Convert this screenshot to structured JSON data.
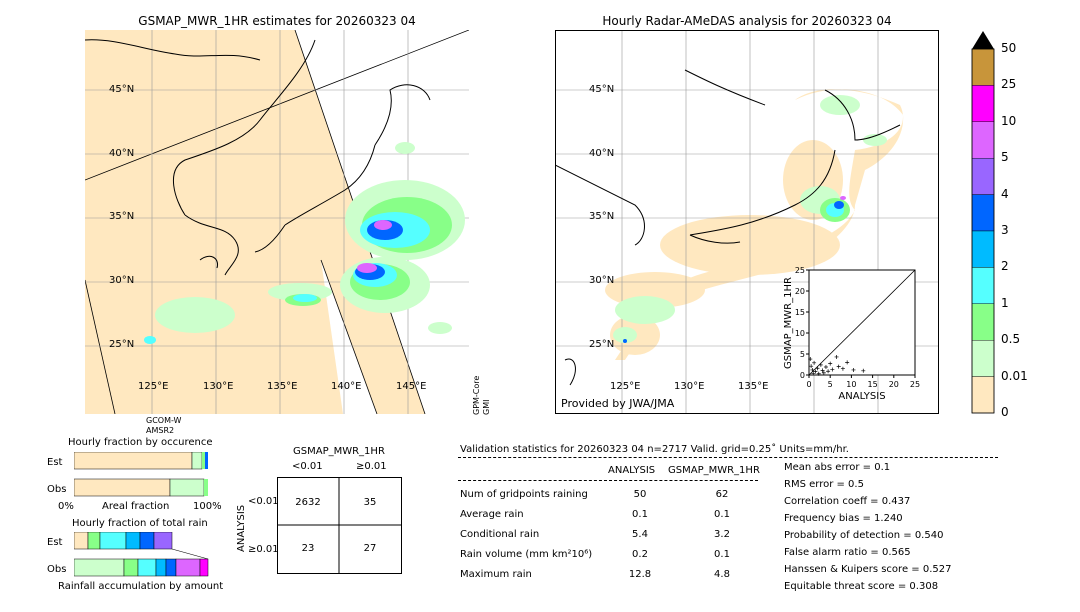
{
  "left_map": {
    "title": "GSMAP_MWR_1HR estimates for 20260323 04",
    "lat_labels": [
      "45°N",
      "40°N",
      "35°N",
      "30°N",
      "25°N"
    ],
    "lon_labels": [
      "125°E",
      "130°E",
      "135°E",
      "140°E",
      "145°E"
    ],
    "sensor_bottom": "GCOM-W\nAMSR2",
    "sensor_right": "GPM-Core\nGMI"
  },
  "right_map": {
    "title": "Hourly Radar-AMeDAS analysis for 20260323 04",
    "lat_labels": [
      "45°N",
      "40°N",
      "35°N",
      "30°N",
      "25°N"
    ],
    "lon_labels": [
      "125°E",
      "130°E",
      "135°E"
    ],
    "credit": "Provided by JWA/JMA"
  },
  "colorbar": {
    "labels": [
      "50",
      "25",
      "10",
      "5",
      "4",
      "3",
      "2",
      "1",
      "0.5",
      "0.01",
      "0"
    ],
    "colors": [
      "#c8953a",
      "#ff00ff",
      "#dd66ff",
      "#9966ff",
      "#0066ff",
      "#00bbff",
      "#55ffff",
      "#88ff88",
      "#ccffcc",
      "#ffe8c0"
    ]
  },
  "occurrence": {
    "title": "Hourly fraction by occurence",
    "row_labels": [
      "Est",
      "Obs"
    ],
    "axis_left": "0%",
    "axis_mid": "Areal fraction",
    "axis_right": "100%"
  },
  "total_rain": {
    "title": "Hourly fraction of total rain",
    "row_labels": [
      "Est",
      "Obs"
    ],
    "axis_label": "Rainfall accumulation by amount"
  },
  "contingency": {
    "title": "GSMAP_MWR_1HR",
    "col_labels": [
      "<0.01",
      "≥0.01"
    ],
    "row_axis": "ANALYSIS",
    "row_labels": [
      "<0.01",
      "≥0.01"
    ],
    "cells": [
      "2632",
      "35",
      "23",
      "27"
    ]
  },
  "validation": {
    "header": "Validation statistics for 20260323 04  n=2717 Valid. grid=0.25˚ Units=mm/hr.",
    "col_analysis": "ANALYSIS",
    "col_gsmap": "GSMAP_MWR_1HR",
    "rows": [
      {
        "label": "Num of gridpoints raining",
        "analysis": "50",
        "gsmap": "62"
      },
      {
        "label": "Average rain",
        "analysis": "0.1",
        "gsmap": "0.1"
      },
      {
        "label": "Conditional rain",
        "analysis": "5.4",
        "gsmap": "3.2"
      },
      {
        "label": "Rain volume (mm km²10⁶)",
        "analysis": "0.2",
        "gsmap": "0.1"
      },
      {
        "label": "Maximum rain",
        "analysis": "12.8",
        "gsmap": "4.8"
      }
    ],
    "scores": [
      "Mean abs error =    0.1",
      "RMS error =    0.5",
      "Correlation coeff =  0.437",
      "Frequency bias =  1.240",
      "Probability of detection =  0.540",
      "False alarm ratio =  0.565",
      "Hanssen & Kuipers score =  0.527",
      "Equitable threat score =  0.308"
    ]
  },
  "chart_data": {
    "type": "scatter",
    "xlabel": "ANALYSIS",
    "ylabel": "GSMAP_MWR_1HR",
    "xlim": [
      0,
      25
    ],
    "ylim": [
      0,
      25
    ],
    "x_ticks": [
      "0",
      "5",
      "10",
      "15",
      "20",
      "25"
    ],
    "y_ticks": [
      "0",
      "5",
      "10",
      "15",
      "20",
      "25"
    ],
    "diagonal": true,
    "points": [
      {
        "x": 0.3,
        "y": 3.8
      },
      {
        "x": 0.5,
        "y": 2.1
      },
      {
        "x": 0.8,
        "y": 1.2
      },
      {
        "x": 1.0,
        "y": 0.4
      },
      {
        "x": 1.2,
        "y": 2.9
      },
      {
        "x": 1.5,
        "y": 0.8
      },
      {
        "x": 2.0,
        "y": 1.6
      },
      {
        "x": 2.3,
        "y": 0.3
      },
      {
        "x": 2.8,
        "y": 2.4
      },
      {
        "x": 3.2,
        "y": 1.1
      },
      {
        "x": 3.5,
        "y": 0.5
      },
      {
        "x": 4.0,
        "y": 1.9
      },
      {
        "x": 4.5,
        "y": 0.9
      },
      {
        "x": 5.0,
        "y": 2.7
      },
      {
        "x": 5.5,
        "y": 1.3
      },
      {
        "x": 6.5,
        "y": 4.3
      },
      {
        "x": 7.0,
        "y": 2.0
      },
      {
        "x": 8.0,
        "y": 1.5
      },
      {
        "x": 9.0,
        "y": 3.0
      },
      {
        "x": 10.5,
        "y": 1.2
      },
      {
        "x": 12.8,
        "y": 1.0
      }
    ]
  }
}
